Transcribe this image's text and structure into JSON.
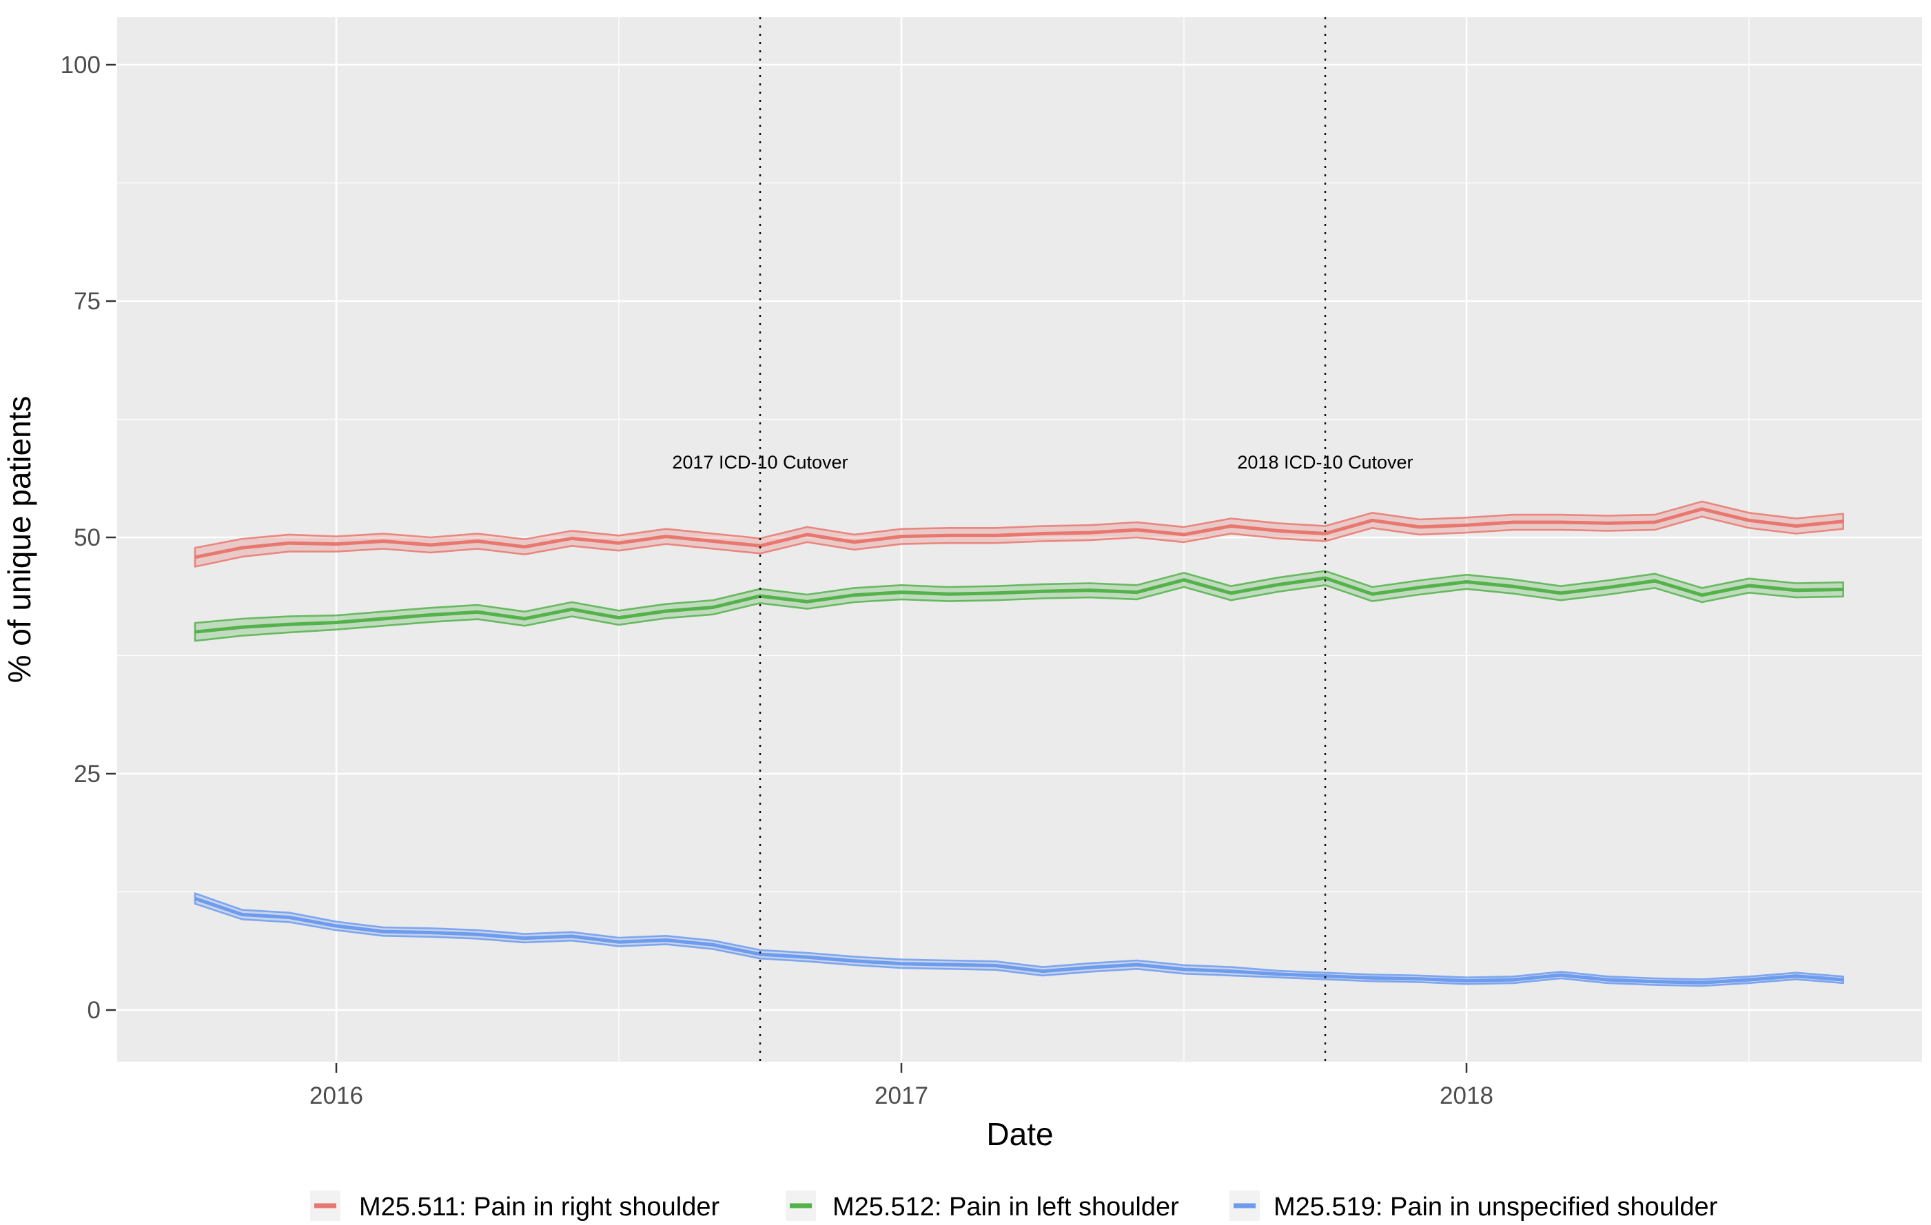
{
  "figure": {
    "background": "#FFFFFF",
    "panel_background": "#EBEBEB",
    "grid_color": "#FFFFFF",
    "tick_color": "#333333",
    "tick_label_color": "#4D4D4D",
    "text_color": "#000000",
    "legend_key_background": "#F2F2F2",
    "cutover_line_color": "#111111"
  },
  "chart_data": {
    "type": "line",
    "title": "",
    "xlabel": "Date",
    "ylabel": "% of unique patients",
    "grid": "major+minor",
    "legend_position": "bottom",
    "ylim": [
      -5.5,
      105.5
    ],
    "y_ticks": [
      0,
      25,
      50,
      75,
      100
    ],
    "y_tick_labels": [
      "0",
      "25",
      "50",
      "75",
      "100"
    ],
    "y_minor_ticks": [
      12.5,
      37.5,
      62.5,
      87.5
    ],
    "x_tick_labels": [
      "2016",
      "2017",
      "2018"
    ],
    "x_months": [
      "2015-10",
      "2015-11",
      "2015-12",
      "2016-01",
      "2016-02",
      "2016-03",
      "2016-04",
      "2016-05",
      "2016-06",
      "2016-07",
      "2016-08",
      "2016-09",
      "2016-10",
      "2016-11",
      "2016-12",
      "2017-01",
      "2017-02",
      "2017-03",
      "2017-04",
      "2017-05",
      "2017-06",
      "2017-07",
      "2017-08",
      "2017-09",
      "2017-10",
      "2017-11",
      "2017-12",
      "2018-01",
      "2018-02",
      "2018-03",
      "2018-04",
      "2018-05",
      "2018-06",
      "2018-07",
      "2018-08",
      "2018-09"
    ],
    "series": [
      {
        "name": "M25.511: Pain in right shoulder",
        "color": "#E8786F",
        "values": [
          47.9,
          48.9,
          49.4,
          49.3,
          49.6,
          49.2,
          49.6,
          49.0,
          49.9,
          49.4,
          50.1,
          49.6,
          49.1,
          50.3,
          49.5,
          50.1,
          50.2,
          50.2,
          50.4,
          50.5,
          50.8,
          50.3,
          51.2,
          50.7,
          50.4,
          51.8,
          51.1,
          51.3,
          51.6,
          51.6,
          51.5,
          51.6,
          53.0,
          51.8,
          51.2,
          51.7
        ],
        "band_halfwidth": [
          1.0,
          0.95,
          0.9,
          0.8,
          0.8,
          0.8,
          0.8,
          0.8,
          0.8,
          0.8,
          0.8,
          0.8,
          0.8,
          0.8,
          0.8,
          0.8,
          0.8,
          0.8,
          0.8,
          0.8,
          0.8,
          0.8,
          0.8,
          0.8,
          0.8,
          0.8,
          0.8,
          0.8,
          0.8,
          0.8,
          0.8,
          0.8,
          0.8,
          0.8,
          0.8,
          0.8
        ]
      },
      {
        "name": "M25.512: Pain in left shoulder",
        "color": "#54B24B",
        "values": [
          40.0,
          40.5,
          40.8,
          41.0,
          41.4,
          41.8,
          42.1,
          41.4,
          42.4,
          41.5,
          42.2,
          42.6,
          43.8,
          43.2,
          43.9,
          44.2,
          44.0,
          44.1,
          44.3,
          44.4,
          44.2,
          45.5,
          44.1,
          45.0,
          45.7,
          44.0,
          44.7,
          45.3,
          44.8,
          44.1,
          44.7,
          45.4,
          43.9,
          44.9,
          44.4,
          44.5
        ],
        "band_halfwidth": [
          0.95,
          0.9,
          0.85,
          0.75,
          0.75,
          0.75,
          0.75,
          0.75,
          0.75,
          0.75,
          0.75,
          0.75,
          0.75,
          0.75,
          0.75,
          0.75,
          0.75,
          0.75,
          0.75,
          0.75,
          0.75,
          0.75,
          0.75,
          0.75,
          0.75,
          0.75,
          0.75,
          0.75,
          0.75,
          0.75,
          0.75,
          0.75,
          0.75,
          0.75,
          0.75,
          0.75
        ]
      },
      {
        "name": "M25.519: Pain in unspecified shoulder",
        "color": "#6D9BEE",
        "values": [
          11.8,
          10.1,
          9.8,
          8.9,
          8.3,
          8.2,
          8.0,
          7.6,
          7.8,
          7.2,
          7.4,
          6.9,
          5.9,
          5.6,
          5.2,
          4.9,
          4.8,
          4.7,
          4.1,
          4.5,
          4.8,
          4.3,
          4.1,
          3.8,
          3.6,
          3.4,
          3.3,
          3.1,
          3.2,
          3.7,
          3.2,
          3.0,
          2.9,
          3.2,
          3.6,
          3.2
        ],
        "band_halfwidth": [
          0.55,
          0.5,
          0.5,
          0.45,
          0.45,
          0.45,
          0.45,
          0.45,
          0.45,
          0.45,
          0.45,
          0.45,
          0.45,
          0.45,
          0.45,
          0.45,
          0.45,
          0.45,
          0.45,
          0.45,
          0.45,
          0.45,
          0.45,
          0.35,
          0.35,
          0.35,
          0.35,
          0.35,
          0.35,
          0.35,
          0.35,
          0.35,
          0.35,
          0.35,
          0.35,
          0.35
        ]
      }
    ],
    "annotations": [
      {
        "label": "2017 ICD-10 Cutover",
        "x_month": "2016-10",
        "style": "dotted-vertical-line"
      },
      {
        "label": "2018 ICD-10 Cutover",
        "x_month": "2017-10",
        "style": "dotted-vertical-line"
      }
    ]
  }
}
